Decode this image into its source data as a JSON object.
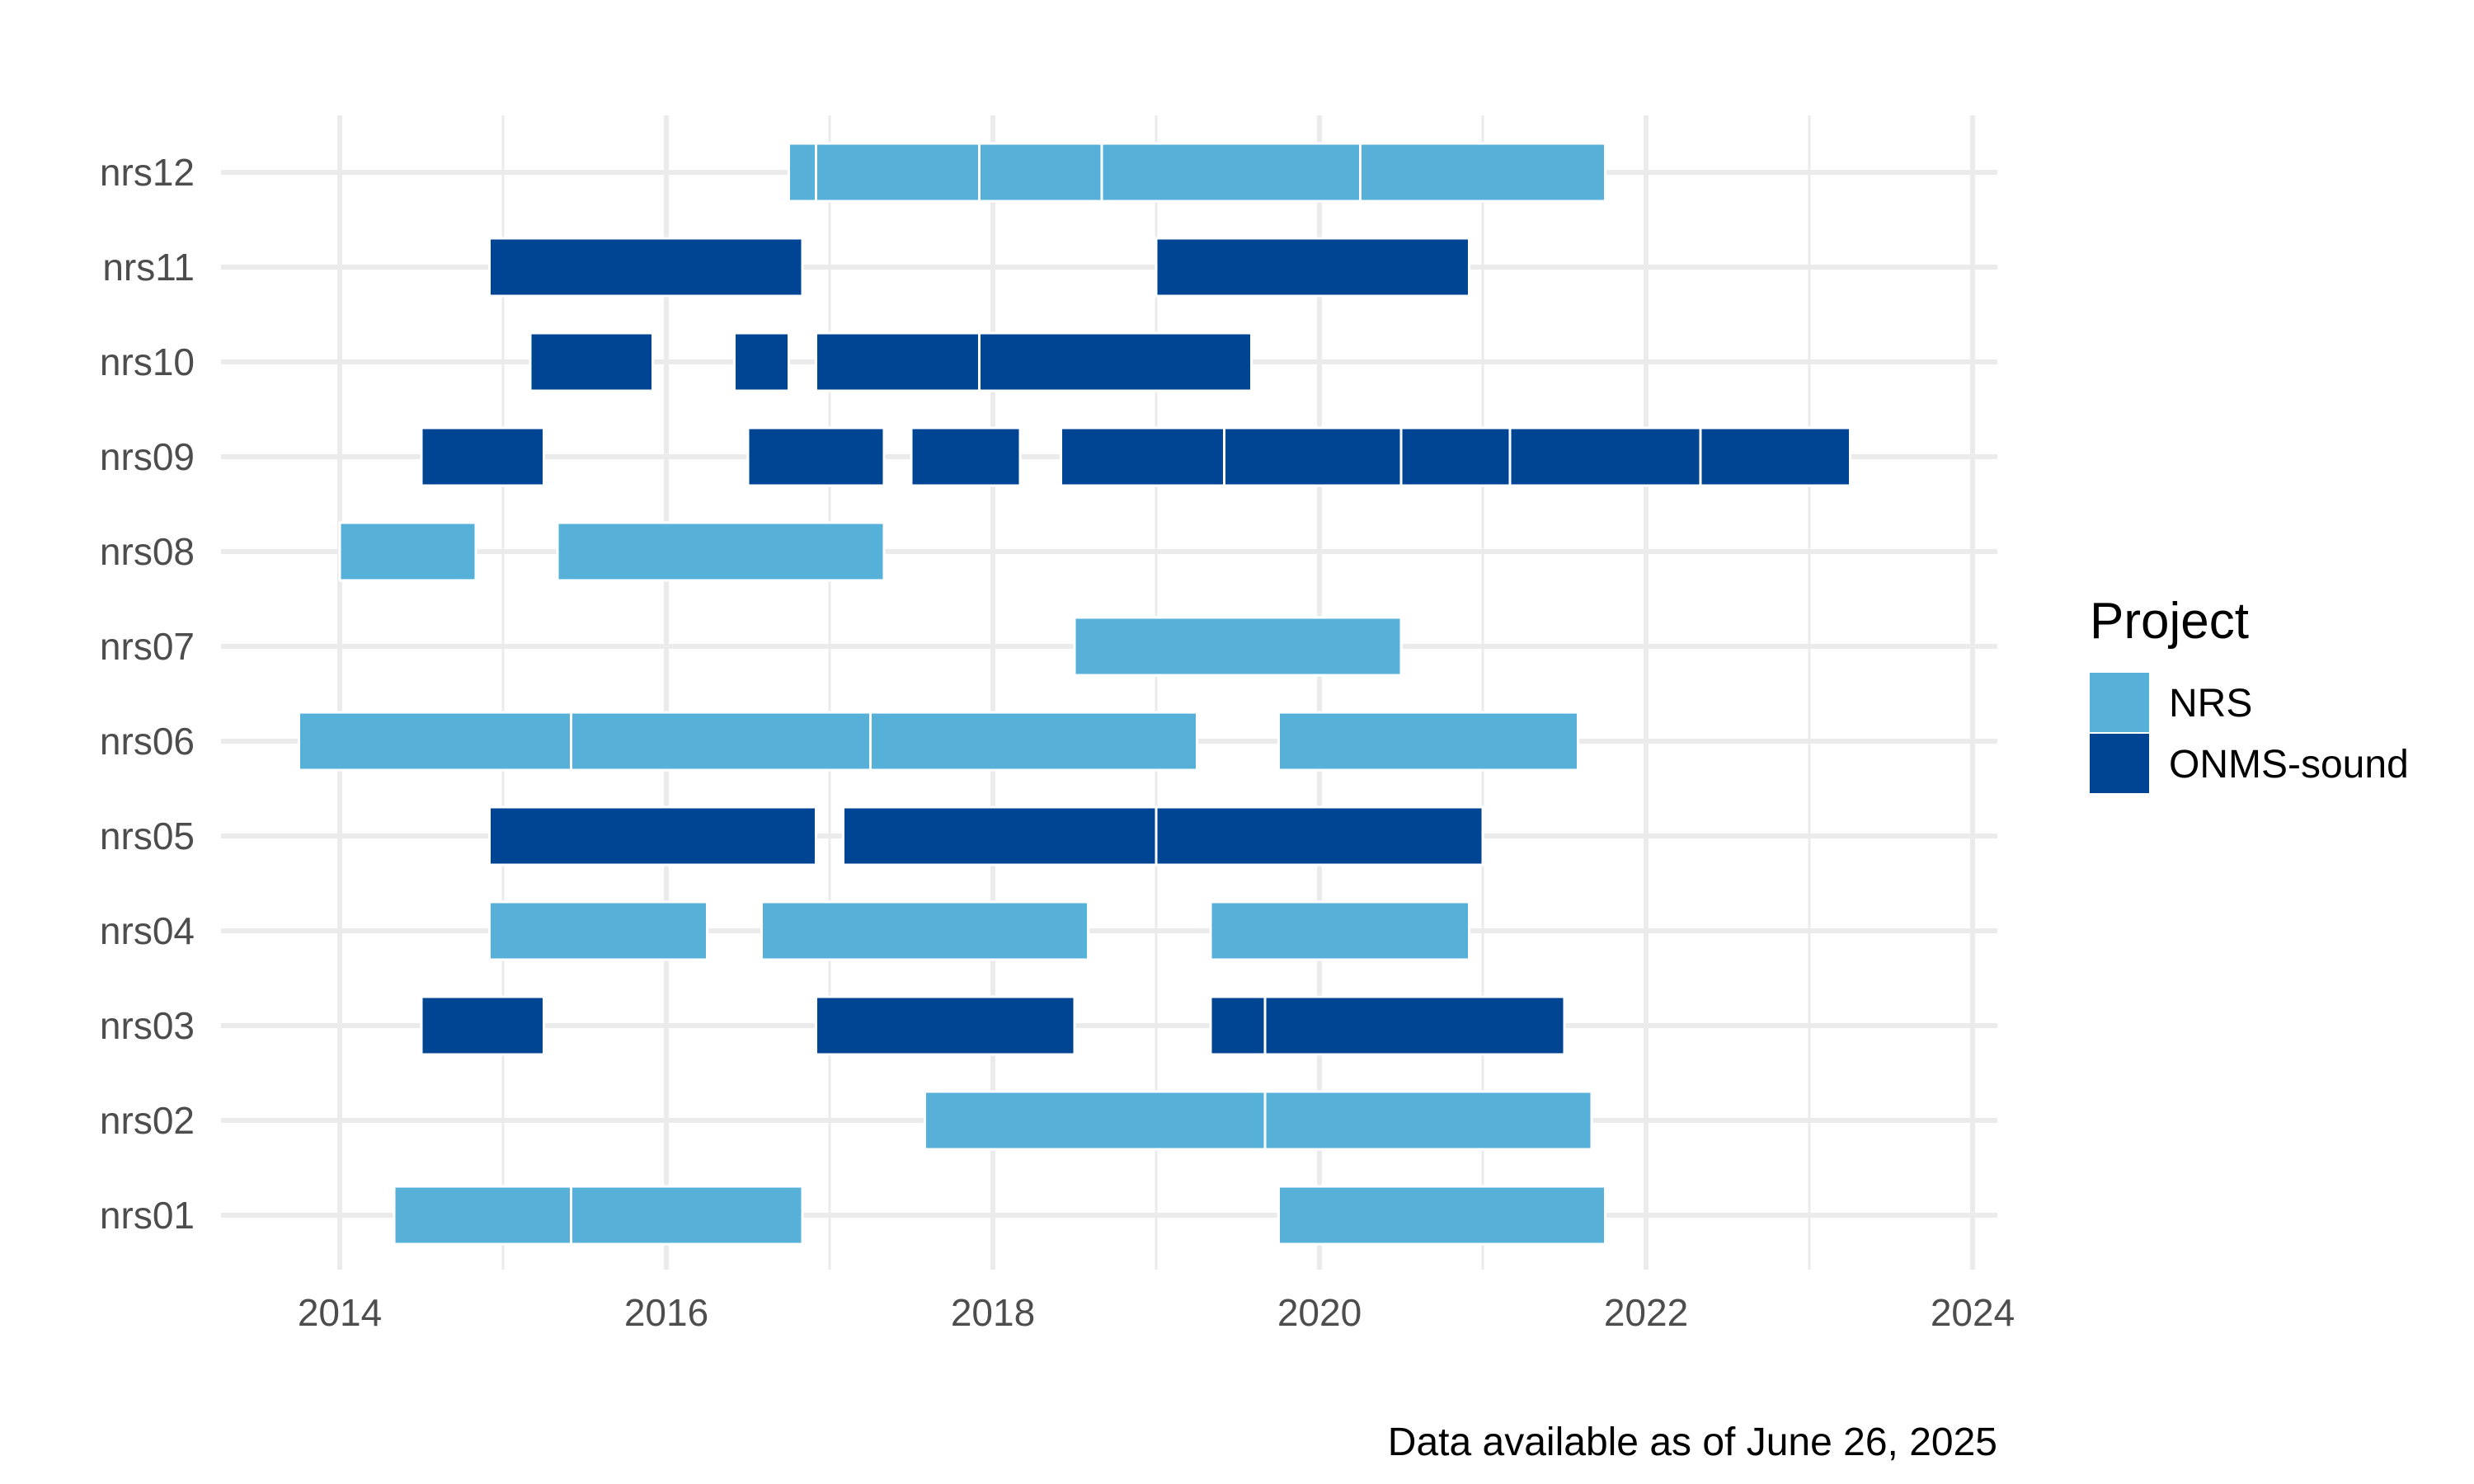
{
  "chart_data": {
    "type": "gantt",
    "x_axis": {
      "ticks": [
        "2014",
        "2016",
        "2018",
        "2020",
        "2022",
        "2024"
      ],
      "range": [
        "2013-09",
        "2024-12"
      ]
    },
    "y_axis": {
      "categories": [
        "nrs01",
        "nrs02",
        "nrs03",
        "nrs04",
        "nrs05",
        "nrs06",
        "nrs07",
        "nrs08",
        "nrs09",
        "nrs10",
        "nrs11",
        "nrs12"
      ]
    },
    "legend": {
      "title": "Project",
      "position": "right",
      "entries": [
        {
          "label": "NRS",
          "color": "#56b0d8"
        },
        {
          "label": "ONMS-sound",
          "color": "#004494"
        }
      ]
    },
    "caption": "Data available as of June 26, 2025",
    "grid": true,
    "segments": [
      {
        "station": "nrs01",
        "project": "NRS",
        "start": "2014-05",
        "end": "2015-06"
      },
      {
        "station": "nrs01",
        "project": "NRS",
        "start": "2015-06",
        "end": "2016-11"
      },
      {
        "station": "nrs01",
        "project": "NRS",
        "start": "2019-10",
        "end": "2021-10"
      },
      {
        "station": "nrs02",
        "project": "NRS",
        "start": "2017-08",
        "end": "2019-09"
      },
      {
        "station": "nrs02",
        "project": "NRS",
        "start": "2019-09",
        "end": "2021-09"
      },
      {
        "station": "nrs03",
        "project": "ONMS-sound",
        "start": "2014-07",
        "end": "2015-04"
      },
      {
        "station": "nrs03",
        "project": "ONMS-sound",
        "start": "2016-12",
        "end": "2018-07"
      },
      {
        "station": "nrs03",
        "project": "ONMS-sound",
        "start": "2019-05",
        "end": "2019-09"
      },
      {
        "station": "nrs03",
        "project": "ONMS-sound",
        "start": "2019-09",
        "end": "2021-07"
      },
      {
        "station": "nrs04",
        "project": "NRS",
        "start": "2014-12",
        "end": "2016-04"
      },
      {
        "station": "nrs04",
        "project": "NRS",
        "start": "2016-08",
        "end": "2018-08"
      },
      {
        "station": "nrs04",
        "project": "NRS",
        "start": "2019-05",
        "end": "2020-12"
      },
      {
        "station": "nrs05",
        "project": "ONMS-sound",
        "start": "2014-12",
        "end": "2016-12"
      },
      {
        "station": "nrs05",
        "project": "ONMS-sound",
        "start": "2017-02",
        "end": "2019-01"
      },
      {
        "station": "nrs05",
        "project": "ONMS-sound",
        "start": "2019-01",
        "end": "2021-01"
      },
      {
        "station": "nrs06",
        "project": "NRS",
        "start": "2013-10",
        "end": "2015-06"
      },
      {
        "station": "nrs06",
        "project": "NRS",
        "start": "2015-06",
        "end": "2017-04"
      },
      {
        "station": "nrs06",
        "project": "NRS",
        "start": "2017-04",
        "end": "2019-04"
      },
      {
        "station": "nrs06",
        "project": "NRS",
        "start": "2019-10",
        "end": "2021-08"
      },
      {
        "station": "nrs07",
        "project": "NRS",
        "start": "2018-07",
        "end": "2020-07"
      },
      {
        "station": "nrs08",
        "project": "NRS",
        "start": "2014-01",
        "end": "2014-11"
      },
      {
        "station": "nrs08",
        "project": "NRS",
        "start": "2015-05",
        "end": "2017-05"
      },
      {
        "station": "nrs09",
        "project": "ONMS-sound",
        "start": "2014-07",
        "end": "2015-04"
      },
      {
        "station": "nrs09",
        "project": "ONMS-sound",
        "start": "2016-07",
        "end": "2017-05"
      },
      {
        "station": "nrs09",
        "project": "ONMS-sound",
        "start": "2017-07",
        "end": "2018-03"
      },
      {
        "station": "nrs09",
        "project": "ONMS-sound",
        "start": "2018-06",
        "end": "2019-06"
      },
      {
        "station": "nrs09",
        "project": "ONMS-sound",
        "start": "2019-06",
        "end": "2020-07"
      },
      {
        "station": "nrs09",
        "project": "ONMS-sound",
        "start": "2020-07",
        "end": "2021-03"
      },
      {
        "station": "nrs09",
        "project": "ONMS-sound",
        "start": "2021-03",
        "end": "2022-05"
      },
      {
        "station": "nrs09",
        "project": "ONMS-sound",
        "start": "2022-05",
        "end": "2023-04"
      },
      {
        "station": "nrs10",
        "project": "ONMS-sound",
        "start": "2015-03",
        "end": "2015-12"
      },
      {
        "station": "nrs10",
        "project": "ONMS-sound",
        "start": "2016-06",
        "end": "2016-10"
      },
      {
        "station": "nrs10",
        "project": "ONMS-sound",
        "start": "2016-12",
        "end": "2017-12"
      },
      {
        "station": "nrs10",
        "project": "ONMS-sound",
        "start": "2017-12",
        "end": "2019-08"
      },
      {
        "station": "nrs11",
        "project": "ONMS-sound",
        "start": "2014-12",
        "end": "2016-11"
      },
      {
        "station": "nrs11",
        "project": "ONMS-sound",
        "start": "2019-01",
        "end": "2020-12"
      },
      {
        "station": "nrs12",
        "project": "NRS",
        "start": "2016-10",
        "end": "2016-12"
      },
      {
        "station": "nrs12",
        "project": "NRS",
        "start": "2016-12",
        "end": "2017-12"
      },
      {
        "station": "nrs12",
        "project": "NRS",
        "start": "2017-12",
        "end": "2018-09"
      },
      {
        "station": "nrs12",
        "project": "NRS",
        "start": "2018-09",
        "end": "2020-04"
      },
      {
        "station": "nrs12",
        "project": "NRS",
        "start": "2020-04",
        "end": "2021-10"
      }
    ]
  }
}
